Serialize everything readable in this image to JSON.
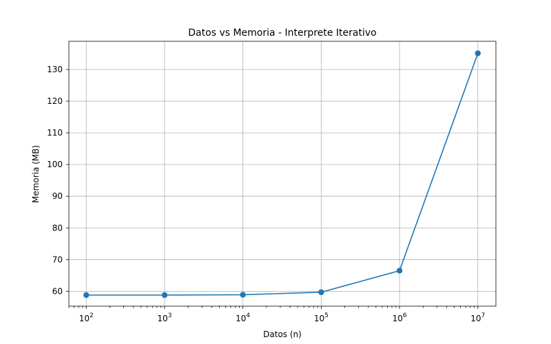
{
  "chart_data": {
    "type": "line",
    "title": "Datos vs Memoria - Interprete Iterativo",
    "xlabel": "Datos (n)",
    "ylabel": "Memoria (MB)",
    "xscale": "log",
    "yscale": "linear",
    "grid": true,
    "marker": "circle",
    "color": "#1f77b4",
    "x": [
      100,
      1000,
      10000,
      100000,
      1000000,
      10000000
    ],
    "y": [
      58.8,
      58.8,
      58.9,
      59.7,
      66.5,
      135.1
    ],
    "xlim": [
      60,
      17000000
    ],
    "ylim": [
      55.3,
      138.9
    ],
    "x_tick_values": [
      100,
      1000,
      10000,
      100000,
      1000000,
      10000000
    ],
    "x_tick_exponents": [
      "2",
      "3",
      "4",
      "5",
      "6",
      "7"
    ],
    "y_ticks": [
      60,
      70,
      80,
      90,
      100,
      110,
      120,
      130
    ],
    "y_tick_labels": [
      "60",
      "70",
      "80",
      "90",
      "100",
      "110",
      "120",
      "130"
    ]
  }
}
